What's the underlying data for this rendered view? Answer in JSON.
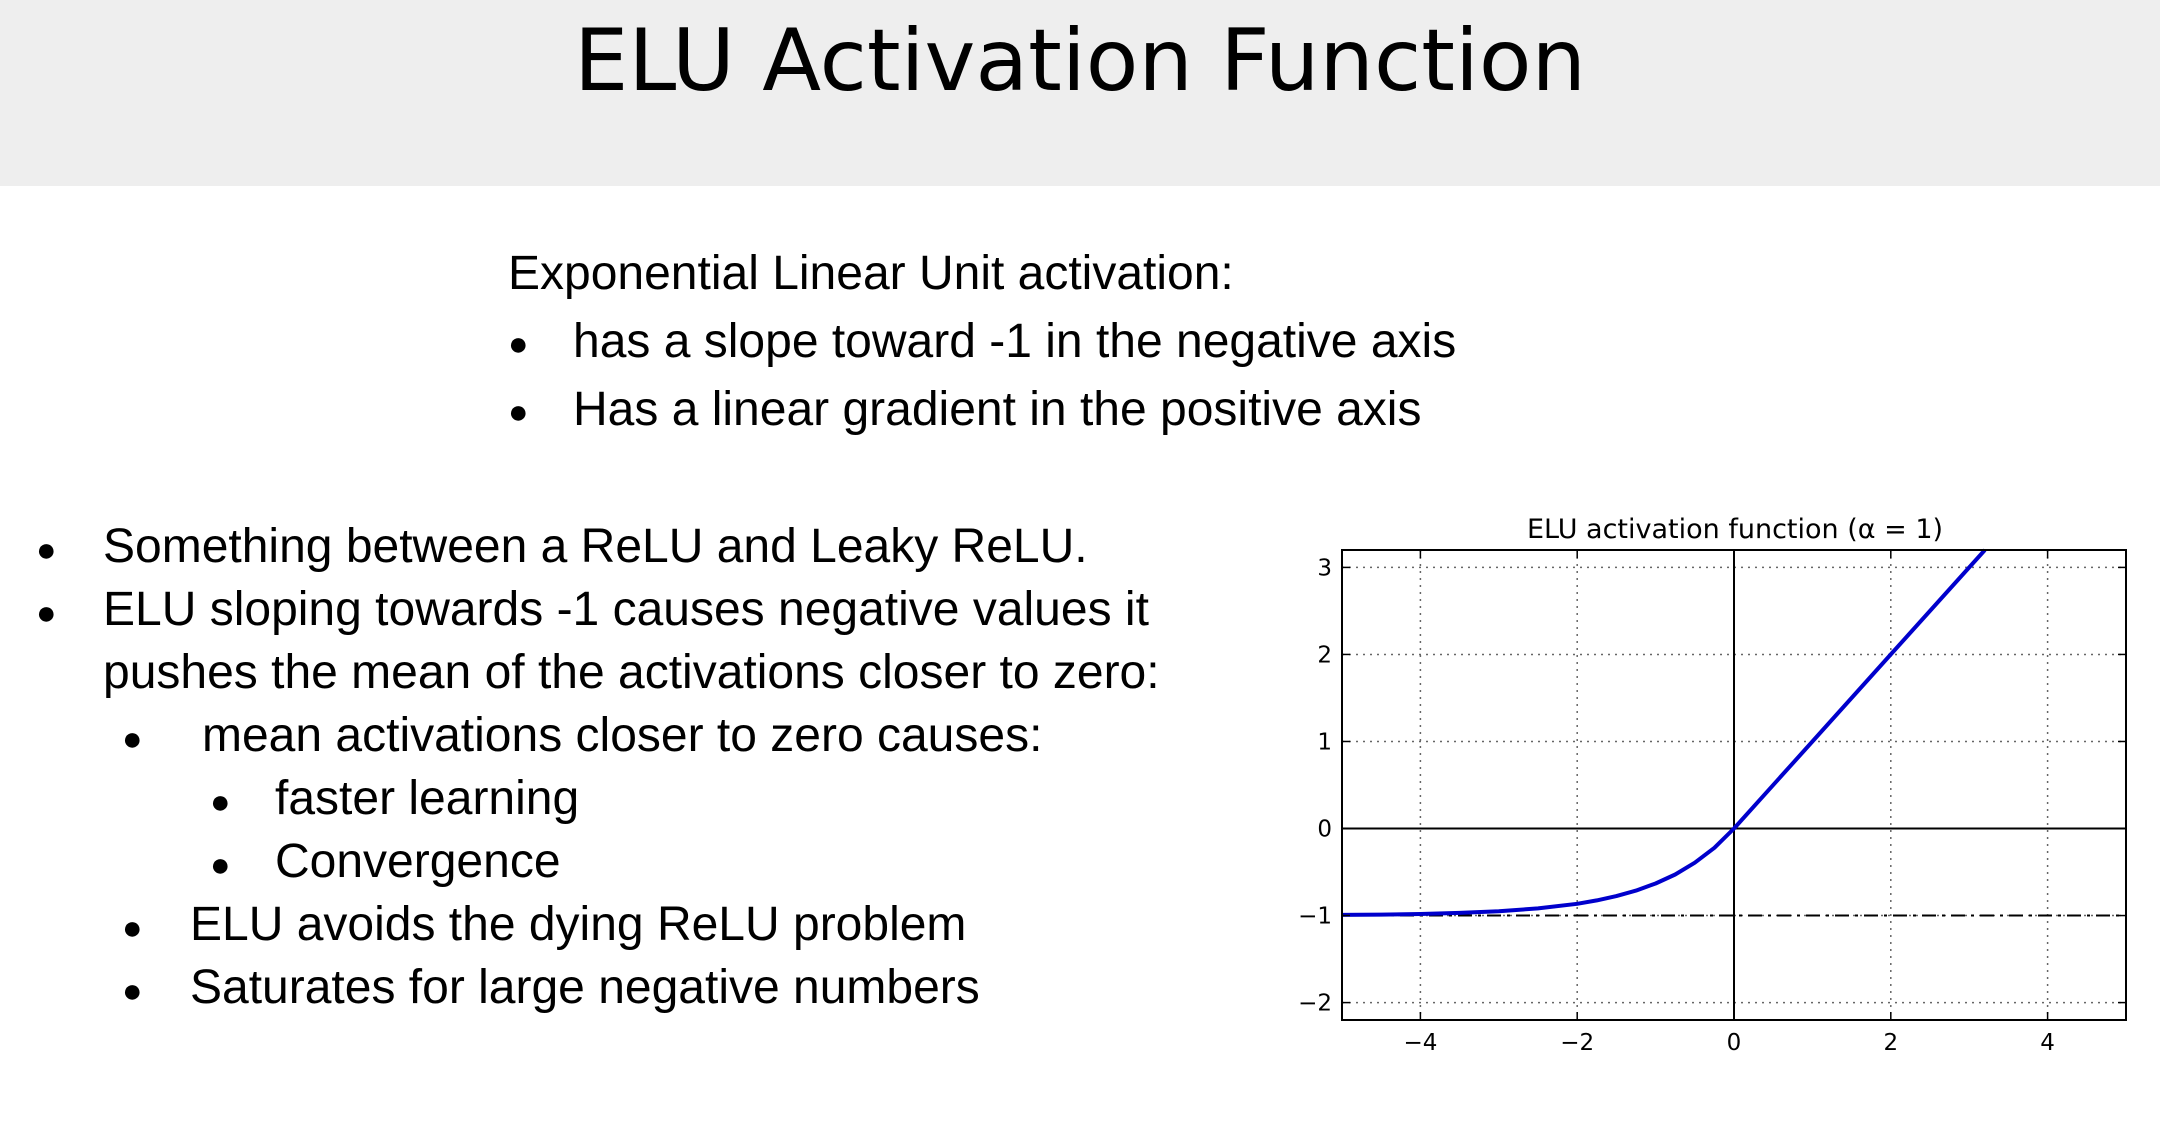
{
  "title": "ELU Activation Function",
  "intro": {
    "heading": "Exponential Linear Unit activation:",
    "bullets": [
      "has a slope toward -1 in the negative axis",
      "Has a linear gradient in the positive axis"
    ]
  },
  "points": {
    "items": [
      "Something between a ReLU and Leaky ReLU.",
      "ELU sloping towards -1 causes negative values it",
      "pushes the mean of the activations closer to zero:",
      "mean activations closer to zero causes:",
      "faster learning",
      "Convergence",
      "ELU avoids the dying ReLU problem",
      "Saturates for large negative numbers"
    ]
  },
  "chart_data": {
    "type": "line",
    "title": "ELU activation function (α = 1)",
    "xlabel": "",
    "ylabel": "",
    "xlim": [
      -5,
      5
    ],
    "ylim": [
      -2.2,
      3.2
    ],
    "xticks": [
      -4,
      -2,
      0,
      2,
      4
    ],
    "yticks": [
      -2,
      -1,
      0,
      1,
      2,
      3
    ],
    "xtick_labels": [
      "−4",
      "−2",
      "0",
      "2",
      "4"
    ],
    "ytick_labels": [
      "−2",
      "−1",
      "0",
      "1",
      "2",
      "3"
    ],
    "grid": true,
    "series": [
      {
        "x": [
          -5,
          -4.5,
          -4,
          -3.5,
          -3,
          -2.5,
          -2,
          -1.75,
          -1.5,
          -1.25,
          -1,
          -0.75,
          -0.5,
          -0.25,
          0,
          1,
          2,
          3,
          3.2
        ],
        "y": [
          -0.993,
          -0.989,
          -0.982,
          -0.97,
          -0.95,
          -0.918,
          -0.865,
          -0.826,
          -0.777,
          -0.713,
          -0.632,
          -0.528,
          -0.393,
          -0.221,
          0,
          1,
          2,
          3,
          3.2
        ],
        "color": "#0000cc"
      }
    ],
    "reference_lines": {
      "horizontal_dashdot": -1,
      "x_axis": 0,
      "y_axis": 0
    }
  }
}
